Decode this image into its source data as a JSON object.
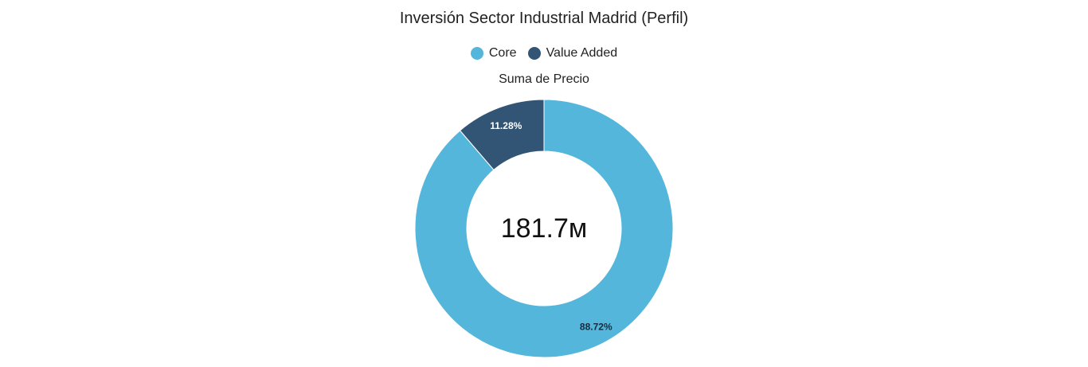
{
  "chart_data": {
    "type": "pie",
    "title": "Inversión Sector Industrial Madrid (Perfil)",
    "subtitle": "Suma de Precio",
    "total_label": "181.7м",
    "legend_position": "top",
    "series": [
      {
        "name": "Core",
        "value": 88.72,
        "label": "88.72%",
        "color": "#54b6da"
      },
      {
        "name": "Value Added",
        "value": 11.28,
        "label": "11.28%",
        "color": "#325576"
      }
    ]
  }
}
